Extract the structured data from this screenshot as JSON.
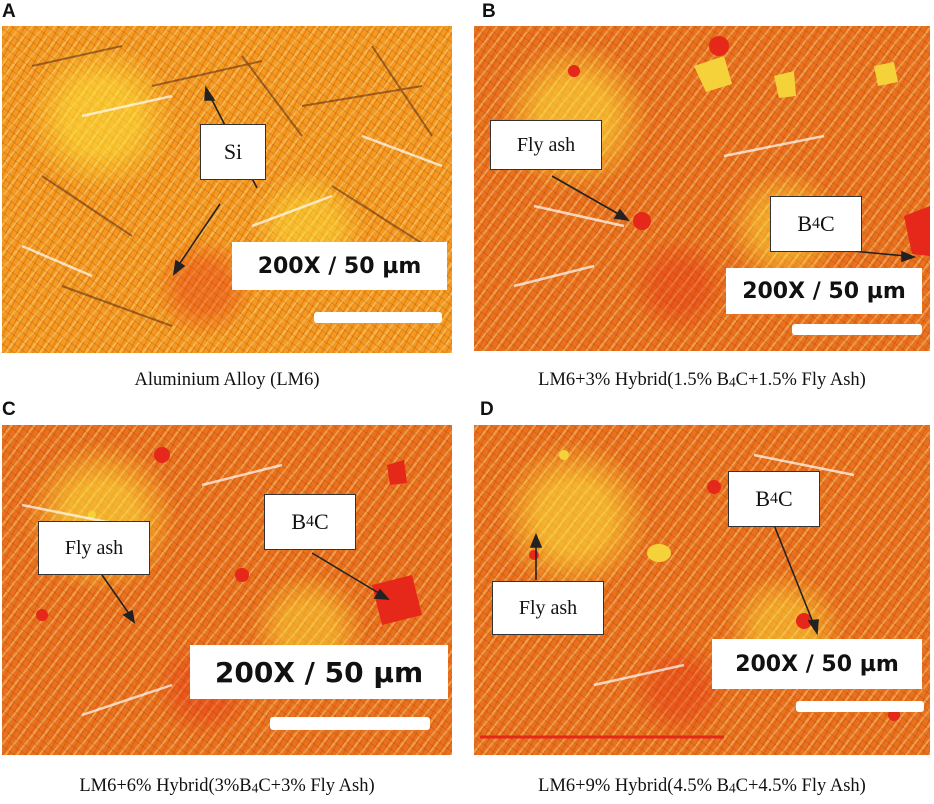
{
  "panels": [
    {
      "letter": "A",
      "scale": "200X / 50 µm",
      "caption": "Aluminium Alloy (LM6)",
      "labels": [
        {
          "text": "Si"
        }
      ]
    },
    {
      "letter": "B",
      "scale": "200X / 50 µm",
      "caption_parts": [
        "LM6+3% Hybrid(1.5% B",
        "4",
        "C+1.5% Fly Ash)"
      ],
      "labels": [
        {
          "text": "Fly ash"
        },
        {
          "parts": [
            "B",
            "4",
            "C"
          ]
        }
      ]
    },
    {
      "letter": "C",
      "scale": "200X / 50 µm",
      "caption_parts": [
        "LM6+6% Hybrid(3%B",
        "4",
        "C+3% Fly Ash)"
      ],
      "labels": [
        {
          "parts": [
            "B",
            "4",
            "C"
          ]
        },
        {
          "text": "Fly ash"
        }
      ]
    },
    {
      "letter": "D",
      "scale": "200X / 50 µm",
      "caption_parts": [
        "LM6+9% Hybrid(4.5% B",
        "4",
        "C+4.5% Fly Ash)"
      ],
      "labels": [
        {
          "parts": [
            "B",
            "4",
            "C"
          ]
        },
        {
          "text": "Fly ash"
        }
      ]
    }
  ],
  "colors": {
    "matrix_orange": "#e9731c",
    "silicon_yellow": "#f5d23a",
    "b4c_red": "#e5281a",
    "annotation_white": "#ffffff"
  }
}
